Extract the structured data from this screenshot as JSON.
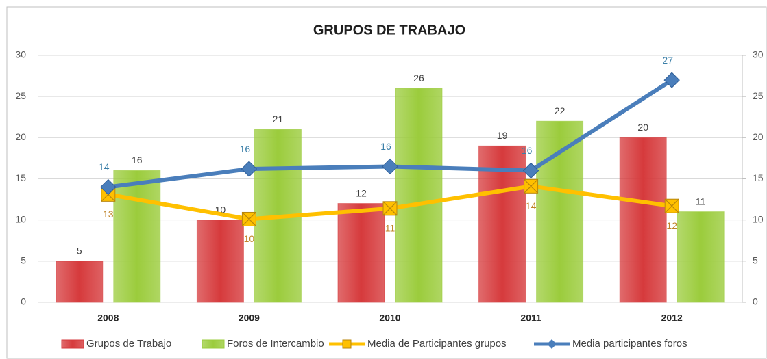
{
  "chart_data": {
    "type": "bar-line",
    "title": "GRUPOS DE TRABAJO",
    "categories": [
      "2008",
      "2009",
      "2010",
      "2011",
      "2012"
    ],
    "series": [
      {
        "name": "Grupos de Trabajo",
        "type": "bar",
        "color": "#d63a3c",
        "values": [
          5,
          10,
          12,
          19,
          20
        ]
      },
      {
        "name": "Foros de Intercambio",
        "type": "bar",
        "color": "#9bcc3c",
        "values": [
          16,
          21,
          26,
          22,
          11
        ]
      },
      {
        "name": "Media de Participantes grupos",
        "type": "line",
        "axis": "y2",
        "color": "#ffc000",
        "label_color": "#c0842a",
        "values": [
          13.1,
          10.1,
          11.4,
          14.1,
          11.7
        ],
        "value_labels": [
          "13",
          "10",
          "11",
          "14",
          "12"
        ]
      },
      {
        "name": "Media participantes foros",
        "type": "line",
        "axis": "y2",
        "color": "#4a7ebb",
        "label_color": "#3b7fa8",
        "values": [
          14,
          16.2,
          16.5,
          16,
          27
        ],
        "value_labels": [
          "14",
          "16",
          "16",
          "16",
          "27"
        ]
      }
    ],
    "ylim": [
      0,
      30
    ],
    "yticks": [
      0,
      5,
      10,
      15,
      20,
      25,
      30
    ],
    "y2lim": [
      0,
      30
    ],
    "y2ticks": [
      0,
      5,
      10,
      15,
      20,
      25,
      30
    ],
    "grid": true,
    "legend": "bottom"
  }
}
